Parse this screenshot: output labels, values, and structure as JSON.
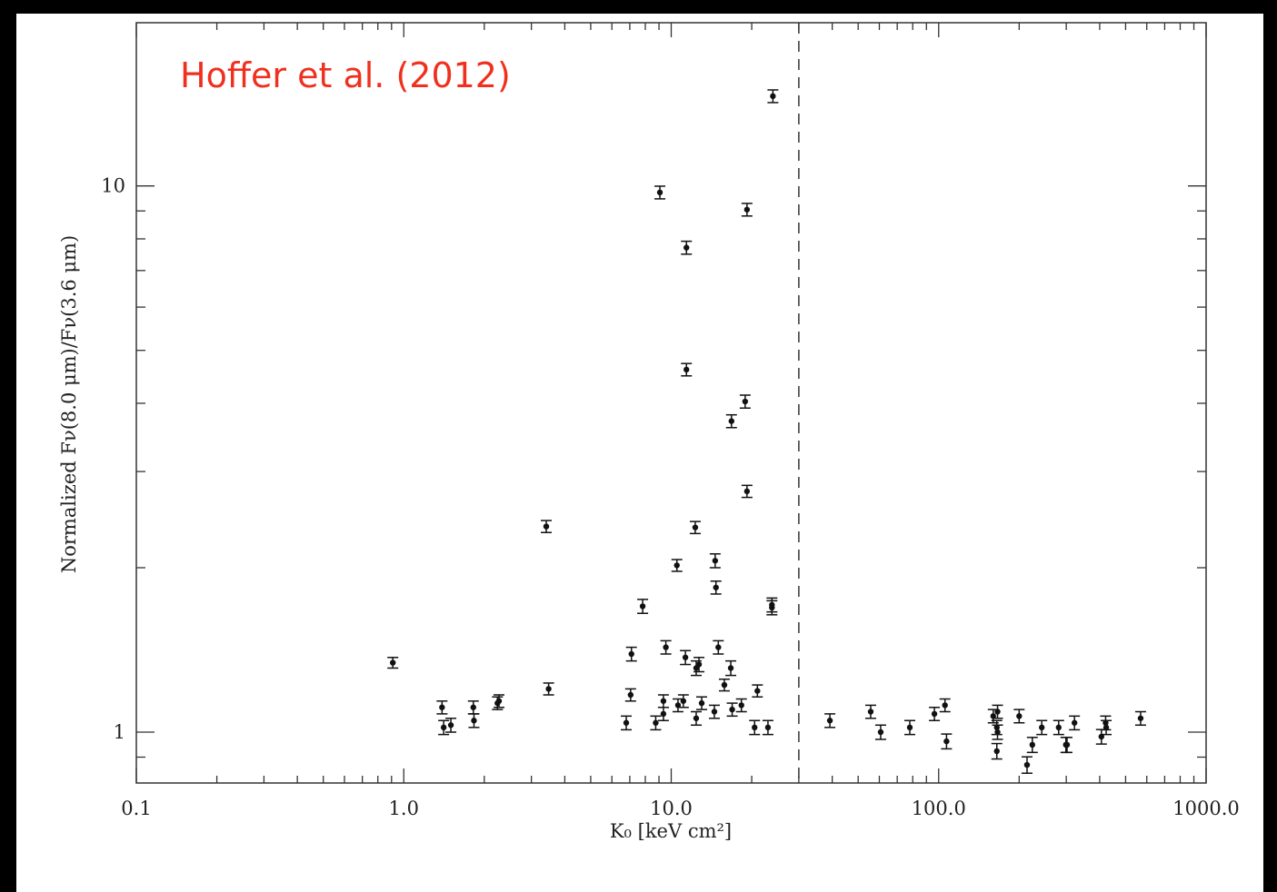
{
  "chart_data": {
    "type": "scatter",
    "annotation": "Hoffer et al. (2012)",
    "xlabel": "K₀ [keV cm²]",
    "ylabel": "Normalized Fν(8.0 μm)/Fν(3.6 μm)",
    "xscale": "log",
    "yscale": "log",
    "xlim": [
      0.1,
      1000
    ],
    "ylim": [
      0.807,
      19.9
    ],
    "xticks": [
      0.1,
      {
        "value": 1,
        "label": "1.0"
      },
      {
        "value": 10,
        "label": "10.0"
      },
      {
        "value": 100,
        "label": "100.0"
      },
      {
        "value": 1000,
        "label": "1000.0"
      }
    ],
    "yticks": [
      1,
      10
    ],
    "xminorticks": [
      0.2,
      0.3,
      0.4,
      0.5,
      0.6,
      0.7,
      0.8,
      0.9,
      2,
      3,
      4,
      5,
      6,
      7,
      8,
      9,
      20,
      30,
      40,
      50,
      60,
      70,
      80,
      90,
      200,
      300,
      400,
      500,
      600,
      700,
      800,
      900
    ],
    "yminorticks": [
      0.9,
      2,
      3,
      4,
      5,
      6,
      7,
      8,
      9
    ],
    "vline_x": 30,
    "color": "#111111",
    "x": [
      0.91,
      1.39,
      1.41,
      1.5,
      1.82,
      1.83,
      2.24,
      2.27,
      3.41,
      3.48,
      6.79,
      7.05,
      7.1,
      7.82,
      8.75,
      9.07,
      9.35,
      9.35,
      9.55,
      11.1,
      10.5,
      10.6,
      11.3,
      11.4,
      11.4,
      12.3,
      12.4,
      12.4,
      12.7,
      13.0,
      14.5,
      14.6,
      14.7,
      15.0,
      15.8,
      16.7,
      16.8,
      16.9,
      18.3,
      18.9,
      19.2,
      19.2,
      20.5,
      21.0,
      23.0,
      23.8,
      23.8,
      24.0,
      39.2,
      55.7,
      60.7,
      78.0,
      96.4,
      105.6,
      107,
      160,
      166,
      165,
      166,
      165,
      200,
      214,
      224,
      243,
      281,
      299,
      302,
      322,
      406,
      421,
      423,
      569
    ],
    "values": [
      1.34,
      1.11,
      1.02,
      1.03,
      1.11,
      1.05,
      1.13,
      1.14,
      2.38,
      1.2,
      1.04,
      1.17,
      1.39,
      1.7,
      1.04,
      9.73,
      1.08,
      1.14,
      1.43,
      1.14,
      2.02,
      1.12,
      1.37,
      7.71,
      4.61,
      2.37,
      1.06,
      1.31,
      1.33,
      1.13,
      1.09,
      2.06,
      1.84,
      1.43,
      1.22,
      1.31,
      3.71,
      1.1,
      1.12,
      4.03,
      9.05,
      2.76,
      1.02,
      1.19,
      1.02,
      1.69,
      1.71,
      14.6,
      1.05,
      1.09,
      1.0,
      1.02,
      1.08,
      1.12,
      0.962,
      1.07,
      1.09,
      1.02,
      1.0,
      0.923,
      1.07,
      0.871,
      0.948,
      1.02,
      1.02,
      0.948,
      0.948,
      1.04,
      0.981,
      1.04,
      1.02,
      1.06
    ],
    "yerr": [
      0.03,
      0.03,
      0.03,
      0.03,
      0.03,
      0.03,
      0.03,
      0.03,
      0.06,
      0.03,
      0.03,
      0.03,
      0.04,
      0.05,
      0.03,
      0.26,
      0.03,
      0.03,
      0.04,
      0.03,
      0.05,
      0.03,
      0.04,
      0.21,
      0.12,
      0.06,
      0.03,
      0.04,
      0.04,
      0.03,
      0.03,
      0.06,
      0.05,
      0.04,
      0.03,
      0.04,
      0.1,
      0.03,
      0.03,
      0.11,
      0.24,
      0.07,
      0.03,
      0.03,
      0.03,
      0.05,
      0.05,
      0.39,
      0.03,
      0.03,
      0.03,
      0.03,
      0.03,
      0.03,
      0.03,
      0.03,
      0.03,
      0.03,
      0.03,
      0.03,
      0.03,
      0.03,
      0.03,
      0.03,
      0.03,
      0.03,
      0.03,
      0.03,
      0.03,
      0.03,
      0.03,
      0.03
    ]
  }
}
